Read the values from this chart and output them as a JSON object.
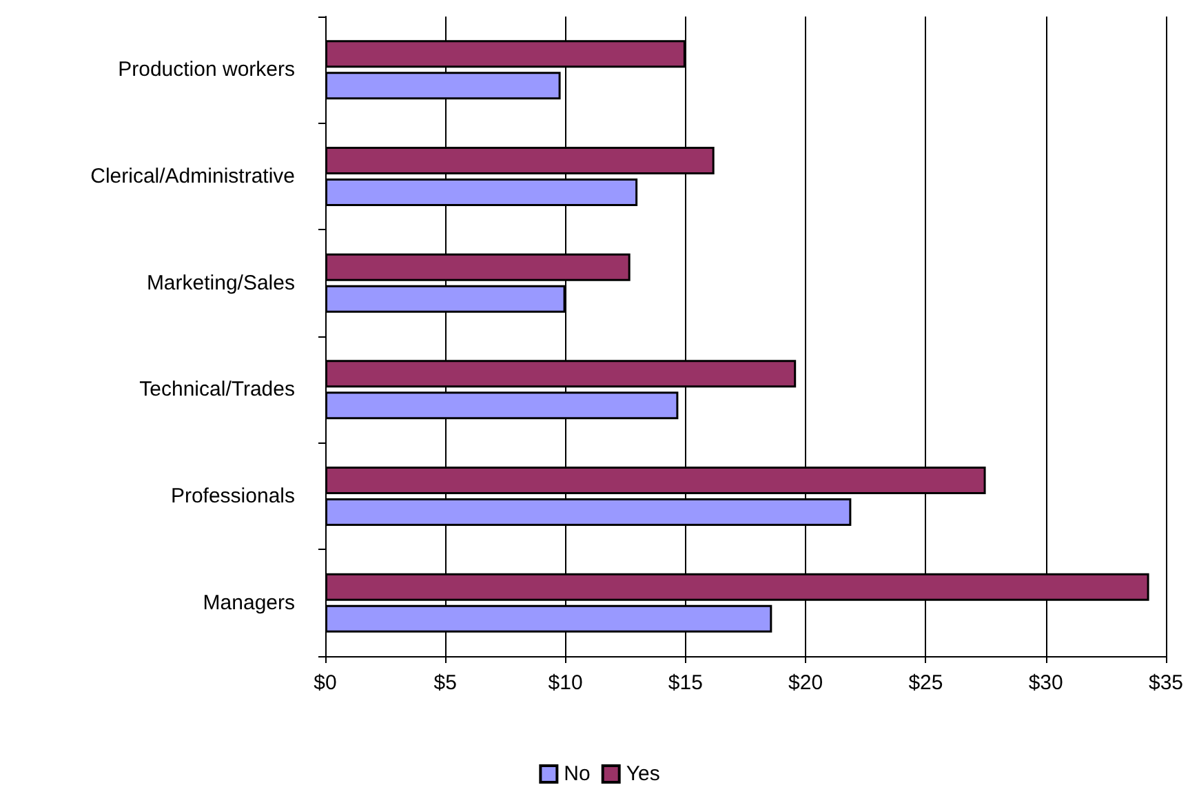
{
  "chart_data": {
    "type": "bar",
    "orientation": "horizontal",
    "categories": [
      "Production workers",
      "Clerical/Administrative",
      "Marketing/Sales",
      "Technical/Trades",
      "Professionals",
      "Managers"
    ],
    "series": [
      {
        "name": "No",
        "color": "#9999ff",
        "values": [
          9.8,
          13.0,
          10.0,
          14.7,
          21.9,
          18.6
        ]
      },
      {
        "name": "Yes",
        "color": "#993366",
        "values": [
          15.0,
          16.2,
          12.7,
          19.6,
          27.5,
          34.3
        ]
      }
    ],
    "xlim": [
      0,
      35
    ],
    "xticks": [
      {
        "value": 0,
        "label": "$0"
      },
      {
        "value": 5,
        "label": "$5"
      },
      {
        "value": 10,
        "label": "$10"
      },
      {
        "value": 15,
        "label": "$15"
      },
      {
        "value": 20,
        "label": "$20"
      },
      {
        "value": 25,
        "label": "$25"
      },
      {
        "value": 30,
        "label": "$30"
      },
      {
        "value": 35,
        "label": "$35"
      }
    ],
    "grid": "x",
    "legend": "bottom"
  }
}
